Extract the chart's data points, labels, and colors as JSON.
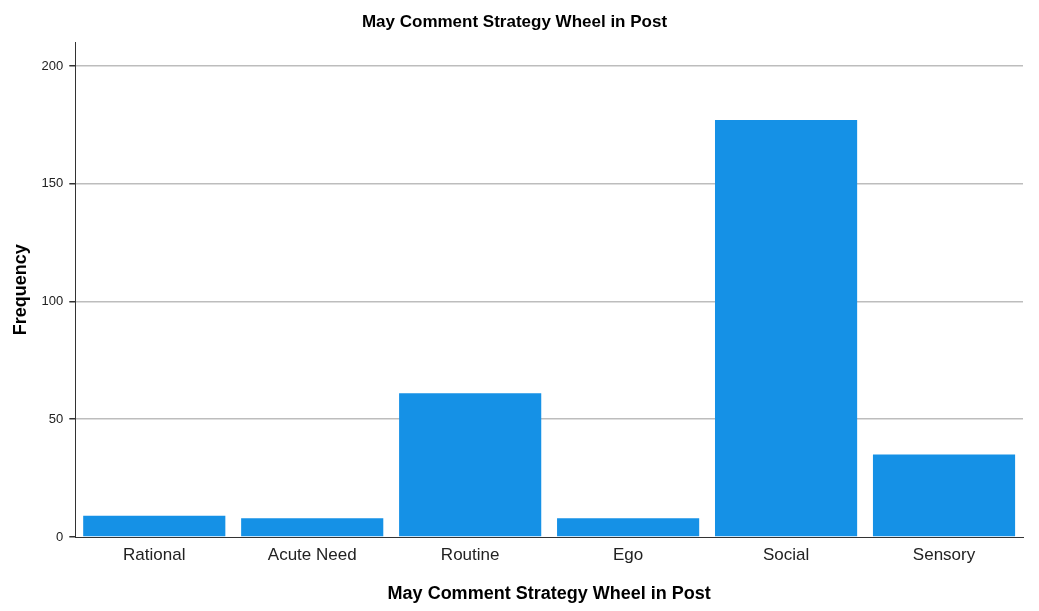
{
  "chart_data": {
    "type": "bar",
    "title": "May Comment Strategy Wheel in Post",
    "xlabel": "May Comment Strategy Wheel in Post",
    "ylabel": "Frequency",
    "categories": [
      "Rational",
      "Acute Need",
      "Routine",
      "Ego",
      "Social",
      "Sensory"
    ],
    "values": [
      9,
      8,
      61,
      8,
      177,
      35
    ],
    "color": "#1591e6",
    "ylim": [
      0,
      210
    ],
    "yticks": [
      0,
      50,
      100,
      150,
      200
    ],
    "grid": "y",
    "legend": false
  }
}
